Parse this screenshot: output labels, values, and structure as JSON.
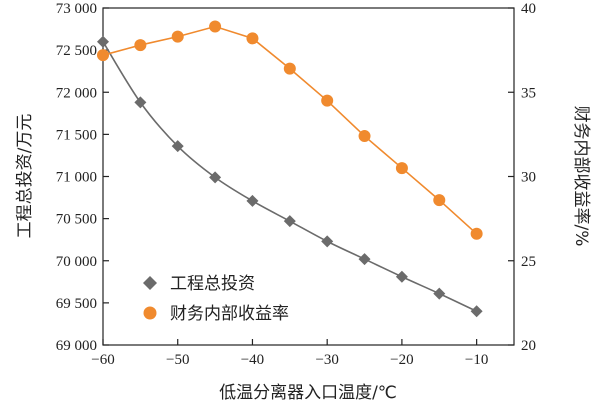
{
  "chart_data": {
    "type": "line",
    "x": [
      -60,
      -55,
      -50,
      -45,
      -40,
      -35,
      -30,
      -25,
      -20,
      -15,
      -10
    ],
    "xlabel": "低温分离器入口温度/℃",
    "xlim": [
      -60,
      -5
    ],
    "xticks": [
      -60,
      -50,
      -40,
      -30,
      -20,
      -10
    ],
    "xtick_labels": [
      "−60",
      "−50",
      "−40",
      "−30",
      "−20",
      "−10"
    ],
    "ylabel_left": "工程总投资/万元",
    "ylim_left": [
      69000,
      73000
    ],
    "yticks_left": [
      69000,
      69500,
      70000,
      70500,
      71000,
      71500,
      72000,
      72500,
      73000
    ],
    "ytick_labels_left": [
      "69 000",
      "69 500",
      "70 000",
      "70 500",
      "71 000",
      "71 500",
      "72 000",
      "72 500",
      "73 000"
    ],
    "ylabel_right": "财务内部收益率/%",
    "ylim_right": [
      20,
      40
    ],
    "yticks_right": [
      20,
      25,
      30,
      35,
      40
    ],
    "ytick_labels_right": [
      "20",
      "25",
      "30",
      "35",
      "40"
    ],
    "series": [
      {
        "name": "工程总投资",
        "axis": "left",
        "marker": "diamond",
        "color": "#6b6b6b",
        "values": [
          72600,
          71880,
          71360,
          70990,
          70710,
          70470,
          70230,
          70020,
          69810,
          69610,
          69400
        ]
      },
      {
        "name": "财务内部收益率",
        "axis": "right",
        "marker": "circle",
        "color": "#f08a2e",
        "values": [
          37.2,
          37.8,
          38.3,
          38.9,
          38.2,
          36.4,
          34.5,
          32.4,
          30.5,
          28.6,
          26.6
        ]
      }
    ],
    "legend_position": "bottom-left",
    "grid": false
  }
}
